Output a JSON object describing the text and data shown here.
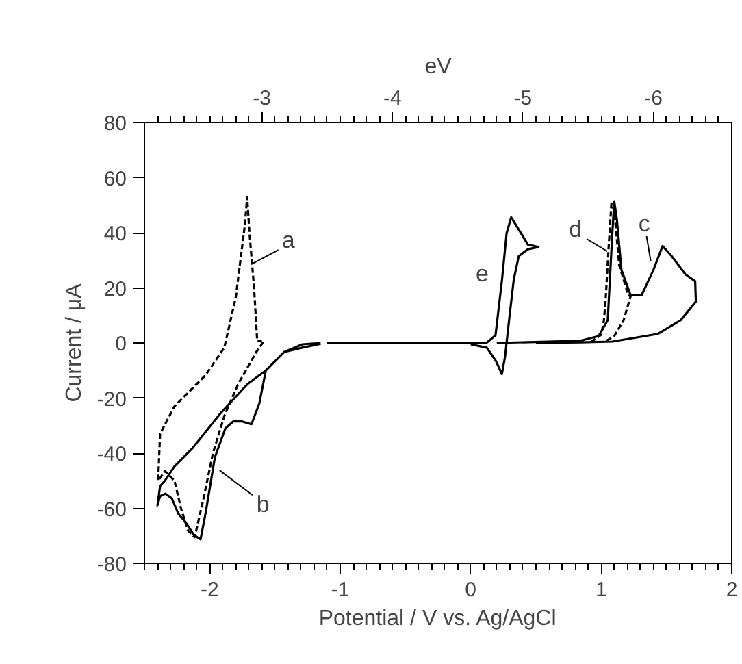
{
  "chart_data": {
    "type": "line",
    "xlabel": "Potential / V vs. Ag/AgCl",
    "ylabel": "Current / μA",
    "x2label": "eV",
    "xlim": [
      -2.5,
      2
    ],
    "ylim": [
      -80,
      80
    ],
    "x2lim": [
      -2.1,
      -6.6
    ],
    "xticks": [
      -2,
      -1,
      0,
      1,
      2,
      {
        "value": -2.5,
        "label": null
      },
      {
        "value": -2.4,
        "label": null
      },
      {
        "value": -2.3,
        "label": null
      },
      {
        "value": -2.2,
        "label": null
      },
      {
        "value": -2.1,
        "label": null
      },
      {
        "value": -1.9,
        "label": null
      },
      {
        "value": -1.8,
        "label": null
      },
      {
        "value": -1.7,
        "label": null
      },
      {
        "value": -1.6,
        "label": null
      },
      {
        "value": -1.5,
        "label": null
      },
      {
        "value": -1.4,
        "label": null
      },
      {
        "value": -1.3,
        "label": null
      },
      {
        "value": -1.2,
        "label": null
      },
      {
        "value": -1.1,
        "label": null
      },
      {
        "value": -0.9,
        "label": null
      },
      {
        "value": -0.8,
        "label": null
      },
      {
        "value": -0.7,
        "label": null
      },
      {
        "value": -0.6,
        "label": null
      },
      {
        "value": -0.5,
        "label": null
      },
      {
        "value": -0.4,
        "label": null
      },
      {
        "value": -0.3,
        "label": null
      },
      {
        "value": -0.2,
        "label": null
      },
      {
        "value": -0.1,
        "label": null
      },
      {
        "value": 0.1,
        "label": null
      },
      {
        "value": 0.2,
        "label": null
      },
      {
        "value": 0.3,
        "label": null
      },
      {
        "value": 0.4,
        "label": null
      },
      {
        "value": 0.5,
        "label": null
      },
      {
        "value": 0.6,
        "label": null
      },
      {
        "value": 0.7,
        "label": null
      },
      {
        "value": 0.8,
        "label": null
      },
      {
        "value": 0.9,
        "label": null
      },
      {
        "value": 1.1,
        "label": null
      },
      {
        "value": 1.2,
        "label": null
      },
      {
        "value": 1.3,
        "label": null
      },
      {
        "value": 1.4,
        "label": null
      },
      {
        "value": 1.5,
        "label": null
      },
      {
        "value": 1.6,
        "label": null
      },
      {
        "value": 1.7,
        "label": null
      },
      {
        "value": 1.8,
        "label": null
      },
      {
        "value": 1.9,
        "label": null
      }
    ],
    "x2ticks": [
      -3,
      -4,
      -5,
      -6,
      {
        "value": -2.2,
        "label": null
      },
      {
        "value": -2.3,
        "label": null
      },
      {
        "value": -2.4,
        "label": null
      },
      {
        "value": -2.5,
        "label": null
      },
      {
        "value": -2.6,
        "label": null
      },
      {
        "value": -2.7,
        "label": null
      },
      {
        "value": -2.8,
        "label": null
      },
      {
        "value": -2.9,
        "label": null
      },
      {
        "value": -3.1,
        "label": null
      },
      {
        "value": -3.2,
        "label": null
      },
      {
        "value": -3.3,
        "label": null
      },
      {
        "value": -3.4,
        "label": null
      },
      {
        "value": -3.5,
        "label": null
      },
      {
        "value": -3.6,
        "label": null
      },
      {
        "value": -3.7,
        "label": null
      },
      {
        "value": -3.8,
        "label": null
      },
      {
        "value": -3.9,
        "label": null
      },
      {
        "value": -4.1,
        "label": null
      },
      {
        "value": -4.2,
        "label": null
      },
      {
        "value": -4.3,
        "label": null
      },
      {
        "value": -4.4,
        "label": null
      },
      {
        "value": -4.5,
        "label": null
      },
      {
        "value": -4.6,
        "label": null
      },
      {
        "value": -4.7,
        "label": null
      },
      {
        "value": -4.8,
        "label": null
      },
      {
        "value": -4.9,
        "label": null
      },
      {
        "value": -5.1,
        "label": null
      },
      {
        "value": -5.2,
        "label": null
      },
      {
        "value": -5.3,
        "label": null
      },
      {
        "value": -5.4,
        "label": null
      },
      {
        "value": -5.5,
        "label": null
      },
      {
        "value": -5.6,
        "label": null
      },
      {
        "value": -5.7,
        "label": null
      },
      {
        "value": -5.8,
        "label": null
      },
      {
        "value": -5.9,
        "label": null
      },
      {
        "value": -6.1,
        "label": null
      },
      {
        "value": -6.2,
        "label": null
      },
      {
        "value": -6.3,
        "label": null
      },
      {
        "value": -6.4,
        "label": null
      },
      {
        "value": -6.5,
        "label": null
      }
    ],
    "yticks": [
      -80,
      -60,
      -40,
      -20,
      0,
      20,
      40,
      60,
      80
    ],
    "grid": false,
    "marker": "none",
    "series": [
      {
        "color": "#000000",
        "line_style": "solid",
        "x": [
          -1.15,
          -1.29,
          -1.43,
          -1.57,
          -1.62,
          -1.68,
          -1.75,
          -1.82,
          -1.88,
          -1.96,
          -2.03,
          -2.07,
          -2.12,
          -2.19,
          -2.24,
          -2.29,
          -2.34,
          -2.38,
          -2.4,
          -2.38,
          -2.34,
          -2.27,
          -2.13,
          -1.92,
          -1.71,
          -1.57,
          -1.43,
          -1.29,
          -1.15
        ],
        "values": [
          0,
          -0.5,
          -3.3,
          -10,
          -22,
          -29.5,
          -28.5,
          -28.5,
          -31,
          -41.5,
          -61.4,
          -71.3,
          -69.7,
          -64.7,
          -62,
          -56.4,
          -54.7,
          -55.6,
          -58.9,
          -52,
          -49.8,
          -44.8,
          -38.1,
          -25.7,
          -14.9,
          -10,
          -3.3,
          -1.7,
          -0.3
        ]
      },
      {
        "color": "#000000",
        "line_style": "solid",
        "x": [
          0.2,
          0.84,
          0.98,
          1.05,
          1.085,
          1.1,
          1.12,
          1.155,
          1.225,
          1.31,
          1.4,
          1.47,
          1.54,
          1.645,
          1.72,
          1.725,
          1.61,
          1.435,
          1.085,
          0.84,
          0.5
        ],
        "values": [
          0,
          0.8,
          2.5,
          8.3,
          39.8,
          51.4,
          44.8,
          26.5,
          17.4,
          17.4,
          26.5,
          35.2,
          31.5,
          24.9,
          22.4,
          15,
          8.3,
          3.3,
          0.5,
          0.2,
          0
        ]
      },
      {
        "color": "#000000",
        "line_style": "solid",
        "x": [
          -1.1,
          0.12,
          0.19,
          0.24,
          0.275,
          0.31,
          0.386,
          0.438,
          0.519,
          0.438,
          0.368,
          0.33,
          0.298,
          0.263,
          0.239,
          0.194,
          0.123,
          0.0
        ],
        "values": [
          0,
          0,
          2.8,
          23,
          39.8,
          45.6,
          39.8,
          35.7,
          34.8,
          34,
          31.5,
          23,
          10,
          -5,
          -11.3,
          -6.6,
          -1.7,
          -0.5
        ]
      },
      {
        "color": "#000000",
        "line_style": "dotted",
        "x": [
          -1.59,
          -1.643,
          -1.783,
          -1.888,
          -1.975,
          -2.045,
          -2.115,
          -2.167,
          -2.22,
          -2.27,
          -2.343,
          -2.395,
          -2.38,
          -2.27,
          -2.03,
          -1.888,
          -1.8,
          -1.73,
          -1.713,
          -1.695,
          -1.66,
          -1.636,
          -1.6
        ],
        "values": [
          0.3,
          -3.3,
          -15,
          -26.5,
          -40,
          -56,
          -70.5,
          -68,
          -60,
          -50,
          -46.5,
          -50,
          -33,
          -23,
          -11.6,
          -1.7,
          16.6,
          43,
          53,
          39.8,
          20,
          0.8,
          0.5
        ]
      },
      {
        "color": "#000000",
        "line_style": "dotted",
        "x": [
          0.92,
          1.0,
          1.02,
          1.033,
          1.045,
          1.057,
          1.078,
          1.1,
          1.138,
          1.207,
          1.225,
          1.172,
          1.1,
          1.04
        ],
        "values": [
          0.3,
          3,
          8,
          14.9,
          25,
          34.8,
          50.6,
          48,
          28.2,
          17.4,
          16.9,
          8.3,
          2.5,
          0.8
        ]
      }
    ],
    "annotations": [
      "b",
      "c",
      "e",
      "a",
      "d"
    ]
  }
}
